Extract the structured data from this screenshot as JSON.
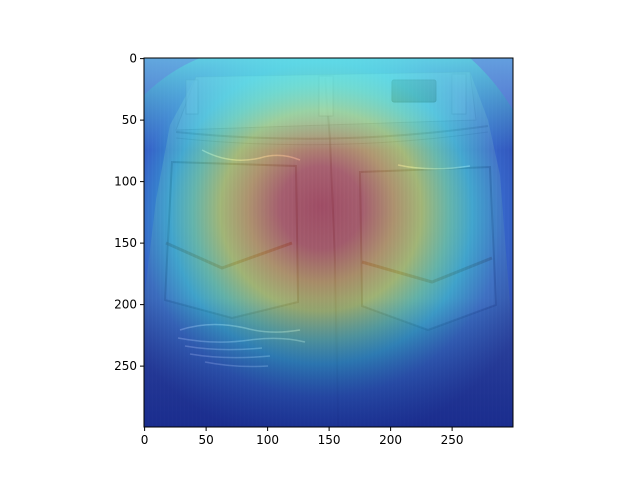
{
  "figure": {
    "description_tags": [
      "jeans-back-photo",
      "heatmap-overlay"
    ],
    "colormap": "jet",
    "overlay_alpha": 0.5
  },
  "axes": {
    "x_ticks": [
      "0",
      "50",
      "100",
      "150",
      "200",
      "250"
    ],
    "y_ticks": [
      "0",
      "50",
      "100",
      "150",
      "200",
      "250"
    ],
    "x_range": [
      0,
      299
    ],
    "y_range": [
      0,
      299
    ]
  }
}
